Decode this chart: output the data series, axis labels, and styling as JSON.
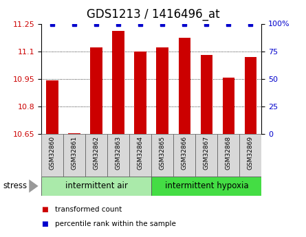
{
  "title": "GDS1213 / 1416496_at",
  "samples": [
    "GSM32860",
    "GSM32861",
    "GSM32862",
    "GSM32863",
    "GSM32864",
    "GSM32865",
    "GSM32866",
    "GSM32867",
    "GSM32868",
    "GSM32869"
  ],
  "transformed_counts": [
    10.94,
    10.655,
    11.12,
    11.21,
    11.1,
    11.12,
    11.175,
    11.08,
    10.955,
    11.07
  ],
  "percentile_ranks": [
    100,
    100,
    100,
    100,
    100,
    100,
    100,
    100,
    100,
    100
  ],
  "ylim": [
    10.65,
    11.25
  ],
  "yticks": [
    10.65,
    10.8,
    10.95,
    11.1,
    11.25
  ],
  "ytick_labels": [
    "10.65",
    "10.8",
    "10.95",
    "11.1",
    "11.25"
  ],
  "right_yticks": [
    0,
    25,
    50,
    75,
    100
  ],
  "right_ytick_labels": [
    "0",
    "25",
    "50",
    "75",
    "100%"
  ],
  "bar_color": "#cc0000",
  "dot_color": "#0000cc",
  "baseline": 10.65,
  "group1_label": "intermittent air",
  "group2_label": "intermittent hypoxia",
  "group1_indices": [
    0,
    1,
    2,
    3,
    4
  ],
  "group2_indices": [
    5,
    6,
    7,
    8,
    9
  ],
  "group1_bg": "#aaeaaa",
  "group2_bg": "#44dd44",
  "stress_label": "stress",
  "legend_bar_label": "transformed count",
  "legend_dot_label": "percentile rank within the sample",
  "title_fontsize": 12,
  "tick_fontsize": 8,
  "sample_fontsize": 6.5,
  "group_fontsize": 8.5,
  "background_color": "#ffffff",
  "grid_color": "#000000",
  "sample_bg": "#d8d8d8"
}
